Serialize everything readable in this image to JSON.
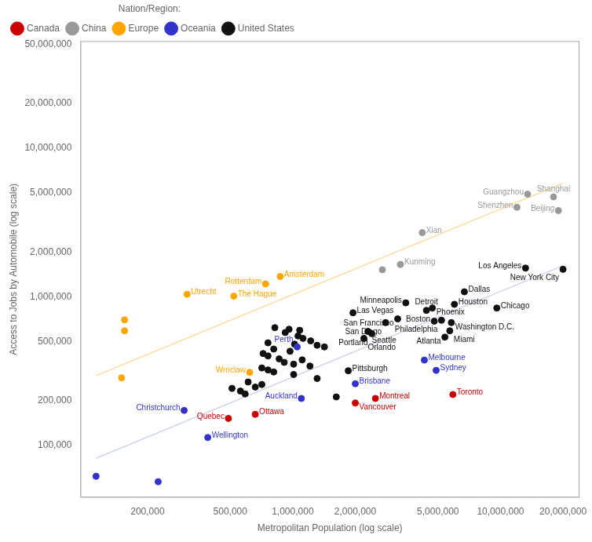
{
  "chart_data": {
    "type": "scatter",
    "xlabel": "Metropolitan Population (log scale)",
    "ylabel": "Access to Jobs by Automobile (log scale)",
    "log": true,
    "grid": false,
    "legend": "upper left",
    "legend_title": "Nation/Region:",
    "xlim": [
      95060.5,
      23988329
    ],
    "ylim": [
      44668.36,
      52480746
    ],
    "xticks": [
      {
        "value": 200000,
        "label": "200,000"
      },
      {
        "value": 500000,
        "label": "500,000"
      },
      {
        "value": 1000000,
        "label": "1,000,000"
      },
      {
        "value": 2000000,
        "label": "2,000,000"
      },
      {
        "value": 5000000,
        "label": "5,000,000"
      },
      {
        "value": 10000000,
        "label": "10,000,000"
      },
      {
        "value": 20000000,
        "label": "20,000,000"
      }
    ],
    "yticks": [
      {
        "value": 100000,
        "label": "100,000"
      },
      {
        "value": 200000,
        "label": "200,000"
      },
      {
        "value": 500000,
        "label": "500,000"
      },
      {
        "value": 1000000,
        "label": "1,000,000"
      },
      {
        "value": 2000000,
        "label": "2,000,000"
      },
      {
        "value": 5000000,
        "label": "5,000,000"
      },
      {
        "value": 10000000,
        "label": "10,000,000"
      },
      {
        "value": 20000000,
        "label": "20,000,000"
      },
      {
        "value": 50000000,
        "label": "50,000,000"
      }
    ],
    "series": [
      {
        "type": "line",
        "color": "#FFA500",
        "x": [
          113000,
          20000000
        ],
        "values": [
          295000,
          5800000
        ]
      },
      {
        "type": "line",
        "color": "#8899CC",
        "x": [
          113000,
          20000000
        ],
        "values": [
          82000,
          1620000
        ]
      },
      {
        "name": "Canada",
        "type": "scatter",
        "marker": "circle",
        "color": "#CC0000",
        "x": [
          490000,
          660000,
          2500000,
          2000000,
          5900000
        ],
        "values": [
          152000,
          162000,
          207000,
          193000,
          220000
        ],
        "annotations": [
          "Quebec",
          "Ottawa",
          "Montreal",
          "Vancouver",
          "Toronto"
        ]
      },
      {
        "name": "China",
        "type": "scatter",
        "marker": "circle",
        "color": "#999999",
        "x": [
          13500000,
          18000000,
          12000000,
          19000000,
          4200000,
          3300000,
          2700000
        ],
        "values": [
          4900000,
          4700000,
          4000000,
          3800000,
          2700000,
          1650000,
          1520000
        ],
        "annotations": [
          "Guangzhou",
          "Shanghai",
          "Shenzhen",
          "Beijing",
          "Xian",
          "Kunming",
          null
        ]
      },
      {
        "name": "Europe",
        "type": "scatter",
        "marker": "circle",
        "color": "#FFA500",
        "x": [
          870000,
          740000,
          310000,
          520000,
          155000,
          155000,
          620000,
          150000
        ],
        "values": [
          1370000,
          1220000,
          1040000,
          1010000,
          700000,
          590000,
          310000,
          285000
        ],
        "annotations": [
          "Amsterdam",
          "Rotterdam",
          "Utrecht",
          "The Hague",
          null,
          null,
          "Wroclaw",
          null
        ]
      },
      {
        "name": "Oceania",
        "type": "scatter",
        "marker": "circle",
        "color": "#3333CC",
        "x": [
          1050000,
          4300000,
          4900000,
          2000000,
          1100000,
          390000,
          300000,
          113000,
          225000
        ],
        "values": [
          460000,
          375000,
          320000,
          260000,
          207000,
          113000,
          172000,
          62000,
          57000
        ],
        "annotations": [
          "Perth",
          "Melbourne",
          "Sydney",
          "Brisbane",
          "Auckland",
          "Wellington",
          "Christchurch",
          null,
          null
        ]
      },
      {
        "name": "United States",
        "type": "scatter",
        "marker": "circle",
        "color": "#111111",
        "x": [
          20000000,
          13200000,
          9600000,
          6700000,
          6000000,
          4700000,
          5200000,
          5800000,
          4800000,
          5700000,
          5400000,
          3500000,
          4400000,
          1950000,
          3200000,
          2800000,
          2300000,
          2400000,
          2200000,
          1850000,
          820000,
          960000,
          1080000,
          920000,
          1060000,
          1120000,
          1220000,
          760000,
          1020000,
          1310000,
          1420000,
          810000,
          970000,
          720000,
          760000,
          860000,
          1110000,
          910000,
          1010000,
          1210000,
          710000,
          760000,
          810000,
          1010000,
          1310000,
          610000,
          710000,
          660000,
          510000,
          560000,
          590000,
          1620000
        ],
        "values": [
          1530000,
          1560000,
          840000,
          1080000,
          890000,
          840000,
          695000,
          670000,
          685000,
          590000,
          535000,
          910000,
          810000,
          780000,
          710000,
          670000,
          585000,
          565000,
          525000,
          318000,
          620000,
          605000,
          595000,
          575000,
          545000,
          525000,
          505000,
          490000,
          480000,
          472000,
          460000,
          445000,
          430000,
          415000,
          400000,
          382000,
          376000,
          362000,
          352000,
          342000,
          332000,
          322000,
          312000,
          300000,
          282000,
          267000,
          257000,
          247000,
          242000,
          232000,
          222000,
          212000
        ],
        "annotations": [
          "New York City",
          "Los Angeles",
          "Chicago",
          "Dallas",
          "Houston",
          "Phoenix",
          "Philadelphia",
          "Washington D.C.",
          "Boston",
          "Miami",
          "Atlanta",
          "Minneapolis",
          "Detroit",
          "Las Vegas",
          "San Francisco",
          "San Diego",
          "Seattle",
          "Portland",
          "Orlando",
          "Pittsburgh",
          null,
          null,
          null,
          null,
          null,
          null,
          null,
          null,
          null,
          null,
          null,
          null,
          null,
          null,
          null,
          null,
          null,
          null,
          null,
          null,
          null,
          null,
          null,
          null,
          null,
          null,
          null,
          null,
          null,
          null,
          null,
          null
        ]
      }
    ]
  }
}
